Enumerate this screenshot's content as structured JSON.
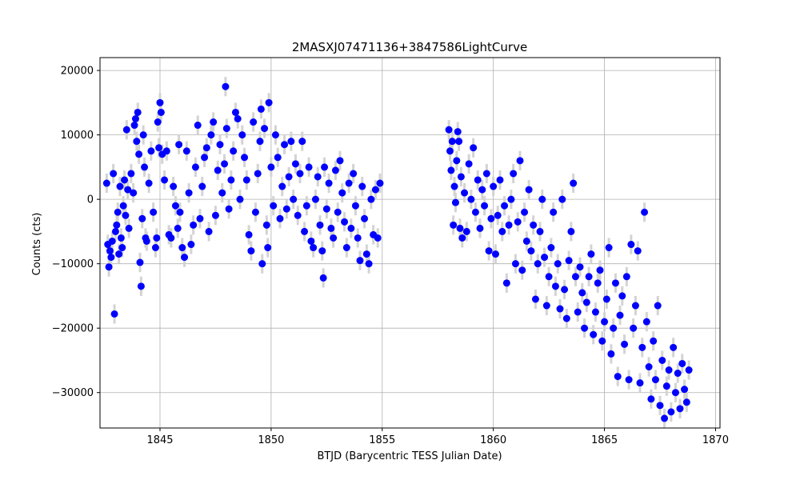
{
  "chart_data": {
    "type": "scatter",
    "title": "2MASXJ07471136+3847586LightCurve",
    "xlabel": "BTJD (Barycentric TESS Julian Date)",
    "ylabel": "Counts (cts)",
    "xlim": [
      1842.3,
      1870.2
    ],
    "ylim": [
      -35500,
      22000
    ],
    "xticks": [
      1845,
      1850,
      1855,
      1860,
      1865,
      1870
    ],
    "yticks": [
      -30000,
      -20000,
      -10000,
      0,
      10000,
      20000
    ],
    "xtick_labels": [
      "1845",
      "1850",
      "1855",
      "1860",
      "1865",
      "1870"
    ],
    "ytick_labels": [
      "−30000",
      "−20000",
      "−10000",
      "0",
      "10000",
      "20000"
    ],
    "grid": true,
    "legend": "none",
    "marker_color": "#0000ff",
    "errorbar_color": "#d3d3d3",
    "series": [
      {
        "error": 1500,
        "points": [
          [
            1842.6,
            2500
          ],
          [
            1842.65,
            -7000
          ],
          [
            1842.7,
            -10500
          ],
          [
            1842.75,
            -8000
          ],
          [
            1842.8,
            -9000
          ],
          [
            1842.85,
            -6500
          ],
          [
            1842.9,
            4000
          ],
          [
            1842.95,
            -17800
          ],
          [
            1843.0,
            -5000
          ],
          [
            1843.05,
            -4000
          ],
          [
            1843.1,
            -2000
          ],
          [
            1843.15,
            -8500
          ],
          [
            1843.2,
            2000
          ],
          [
            1843.25,
            -6000
          ],
          [
            1843.3,
            -7500
          ],
          [
            1843.35,
            -1000
          ],
          [
            1843.4,
            3000
          ],
          [
            1843.45,
            -2500
          ],
          [
            1843.5,
            10800
          ],
          [
            1843.55,
            1500
          ],
          [
            1843.6,
            -4500
          ],
          [
            1843.7,
            4000
          ],
          [
            1843.8,
            1000
          ],
          [
            1843.85,
            11500
          ],
          [
            1843.9,
            12500
          ],
          [
            1843.95,
            9000
          ],
          [
            1844.0,
            13500
          ],
          [
            1844.05,
            7000
          ],
          [
            1844.1,
            -9800
          ],
          [
            1844.15,
            -13500
          ],
          [
            1844.2,
            -3000
          ],
          [
            1844.25,
            10000
          ],
          [
            1844.3,
            5000
          ],
          [
            1844.35,
            -6000
          ],
          [
            1844.4,
            -6500
          ],
          [
            1844.5,
            2500
          ],
          [
            1844.6,
            7500
          ],
          [
            1844.7,
            -2000
          ],
          [
            1844.8,
            -7500
          ],
          [
            1844.85,
            -6000
          ],
          [
            1844.9,
            12000
          ],
          [
            1844.95,
            8000
          ],
          [
            1845.0,
            15000
          ],
          [
            1845.05,
            13500
          ],
          [
            1845.1,
            7000
          ],
          [
            1845.2,
            3000
          ],
          [
            1845.3,
            7500
          ],
          [
            1845.4,
            -5500
          ],
          [
            1845.5,
            -6000
          ],
          [
            1845.6,
            2000
          ],
          [
            1845.7,
            -1000
          ],
          [
            1845.8,
            -4500
          ],
          [
            1845.85,
            8500
          ],
          [
            1845.9,
            -2000
          ],
          [
            1846.0,
            -7500
          ],
          [
            1846.1,
            -9000
          ],
          [
            1846.2,
            7500
          ],
          [
            1846.3,
            1000
          ],
          [
            1846.4,
            -7000
          ],
          [
            1846.5,
            -4000
          ],
          [
            1846.6,
            5000
          ],
          [
            1846.7,
            11500
          ],
          [
            1846.8,
            -3000
          ],
          [
            1846.9,
            2000
          ],
          [
            1847.0,
            6500
          ],
          [
            1847.1,
            8000
          ],
          [
            1847.2,
            -5000
          ],
          [
            1847.3,
            10000
          ],
          [
            1847.4,
            12000
          ],
          [
            1847.5,
            -2500
          ],
          [
            1847.6,
            4500
          ],
          [
            1847.7,
            8500
          ],
          [
            1847.8,
            1000
          ],
          [
            1847.9,
            5500
          ],
          [
            1847.95,
            17500
          ],
          [
            1848.0,
            11000
          ],
          [
            1848.1,
            -1500
          ],
          [
            1848.2,
            3000
          ],
          [
            1848.3,
            7500
          ],
          [
            1848.4,
            13500
          ],
          [
            1848.5,
            12500
          ],
          [
            1848.6,
            0
          ],
          [
            1848.7,
            10000
          ],
          [
            1848.8,
            6500
          ],
          [
            1848.9,
            3000
          ],
          [
            1849.0,
            -5500
          ],
          [
            1849.1,
            -8000
          ],
          [
            1849.2,
            12000
          ],
          [
            1849.3,
            -2000
          ],
          [
            1849.4,
            4000
          ],
          [
            1849.5,
            9000
          ],
          [
            1849.55,
            14000
          ],
          [
            1849.6,
            -10000
          ],
          [
            1849.7,
            11000
          ],
          [
            1849.8,
            -4000
          ],
          [
            1849.85,
            -7500
          ],
          [
            1849.9,
            15000
          ],
          [
            1850.0,
            5000
          ],
          [
            1850.1,
            -1000
          ],
          [
            1850.2,
            10000
          ],
          [
            1850.3,
            6500
          ],
          [
            1850.4,
            -3000
          ],
          [
            1850.5,
            2000
          ],
          [
            1850.6,
            8500
          ],
          [
            1850.7,
            -1500
          ],
          [
            1850.8,
            3500
          ],
          [
            1850.9,
            9000
          ],
          [
            1851.0,
            0
          ],
          [
            1851.1,
            5500
          ],
          [
            1851.2,
            -2500
          ],
          [
            1851.3,
            4000
          ],
          [
            1851.4,
            9000
          ],
          [
            1851.5,
            -5000
          ],
          [
            1851.6,
            -1000
          ],
          [
            1851.7,
            5000
          ],
          [
            1851.8,
            -6500
          ],
          [
            1851.9,
            -7500
          ],
          [
            1852.0,
            0
          ],
          [
            1852.1,
            3500
          ],
          [
            1852.2,
            -4000
          ],
          [
            1852.3,
            -8000
          ],
          [
            1852.35,
            -12200
          ],
          [
            1852.4,
            5000
          ],
          [
            1852.5,
            -1500
          ],
          [
            1852.6,
            2500
          ],
          [
            1852.7,
            -4500
          ],
          [
            1852.8,
            -6000
          ],
          [
            1852.9,
            4500
          ],
          [
            1853.0,
            -2000
          ],
          [
            1853.1,
            6000
          ],
          [
            1853.2,
            1000
          ],
          [
            1853.3,
            -3500
          ],
          [
            1853.4,
            -7500
          ],
          [
            1853.5,
            2500
          ],
          [
            1853.6,
            -4500
          ],
          [
            1853.7,
            4000
          ],
          [
            1853.8,
            -1000
          ],
          [
            1853.9,
            -6000
          ],
          [
            1854.0,
            -9500
          ],
          [
            1854.1,
            2000
          ],
          [
            1854.2,
            -3000
          ],
          [
            1854.3,
            -8500
          ],
          [
            1854.4,
            -10000
          ],
          [
            1854.5,
            0
          ],
          [
            1854.6,
            -5500
          ],
          [
            1854.7,
            1500
          ],
          [
            1854.8,
            -6000
          ],
          [
            1854.9,
            2500
          ],
          [
            1858.0,
            10800
          ],
          [
            1858.05,
            7500
          ],
          [
            1858.1,
            4500
          ],
          [
            1858.15,
            9000
          ],
          [
            1858.2,
            -4000
          ],
          [
            1858.25,
            2000
          ],
          [
            1858.3,
            -500
          ],
          [
            1858.35,
            6000
          ],
          [
            1858.4,
            10500
          ],
          [
            1858.45,
            9000
          ],
          [
            1858.5,
            -4500
          ],
          [
            1858.55,
            3500
          ],
          [
            1858.6,
            -6000
          ],
          [
            1858.7,
            1000
          ],
          [
            1858.8,
            -5000
          ],
          [
            1858.9,
            5500
          ],
          [
            1859.0,
            0
          ],
          [
            1859.1,
            8000
          ],
          [
            1859.2,
            -2000
          ],
          [
            1859.3,
            3000
          ],
          [
            1859.4,
            -4500
          ],
          [
            1859.5,
            1500
          ],
          [
            1859.6,
            -1000
          ],
          [
            1859.7,
            4000
          ],
          [
            1859.8,
            -8000
          ],
          [
            1859.9,
            -3000
          ],
          [
            1860.0,
            2000
          ],
          [
            1860.1,
            -8500
          ],
          [
            1860.2,
            -2500
          ],
          [
            1860.3,
            3000
          ],
          [
            1860.4,
            -5000
          ],
          [
            1860.5,
            -1000
          ],
          [
            1860.6,
            -13000
          ],
          [
            1860.7,
            -4000
          ],
          [
            1860.8,
            0
          ],
          [
            1860.9,
            4000
          ],
          [
            1861.0,
            -10000
          ],
          [
            1861.1,
            -3500
          ],
          [
            1861.2,
            6000
          ],
          [
            1861.3,
            -11000
          ],
          [
            1861.4,
            -2000
          ],
          [
            1861.5,
            -6500
          ],
          [
            1861.6,
            1500
          ],
          [
            1861.7,
            -8000
          ],
          [
            1861.8,
            -4000
          ],
          [
            1861.9,
            -15500
          ],
          [
            1862.0,
            -10000
          ],
          [
            1862.1,
            -5000
          ],
          [
            1862.2,
            0
          ],
          [
            1862.3,
            -9000
          ],
          [
            1862.4,
            -16500
          ],
          [
            1862.5,
            -12000
          ],
          [
            1862.6,
            -7500
          ],
          [
            1862.7,
            -2000
          ],
          [
            1862.8,
            -13500
          ],
          [
            1862.9,
            -10000
          ],
          [
            1863.0,
            -17000
          ],
          [
            1863.1,
            0
          ],
          [
            1863.2,
            -14000
          ],
          [
            1863.3,
            -18500
          ],
          [
            1863.4,
            -9500
          ],
          [
            1863.5,
            -5000
          ],
          [
            1863.6,
            2500
          ],
          [
            1863.7,
            -12000
          ],
          [
            1863.8,
            -17500
          ],
          [
            1863.9,
            -10500
          ],
          [
            1864.0,
            -14500
          ],
          [
            1864.1,
            -20000
          ],
          [
            1864.2,
            -16000
          ],
          [
            1864.3,
            -12000
          ],
          [
            1864.4,
            -8500
          ],
          [
            1864.5,
            -21000
          ],
          [
            1864.6,
            -17500
          ],
          [
            1864.7,
            -13000
          ],
          [
            1864.8,
            -11000
          ],
          [
            1864.9,
            -22000
          ],
          [
            1865.0,
            -19000
          ],
          [
            1865.1,
            -15500
          ],
          [
            1865.2,
            -7500
          ],
          [
            1865.3,
            -24000
          ],
          [
            1865.4,
            -20000
          ],
          [
            1865.5,
            -13000
          ],
          [
            1865.6,
            -27500
          ],
          [
            1865.7,
            -18000
          ],
          [
            1865.8,
            -15000
          ],
          [
            1865.9,
            -22500
          ],
          [
            1866.0,
            -12000
          ],
          [
            1866.1,
            -28000
          ],
          [
            1866.2,
            -7000
          ],
          [
            1866.3,
            -20000
          ],
          [
            1866.4,
            -16500
          ],
          [
            1866.5,
            -8000
          ],
          [
            1866.6,
            -28500
          ],
          [
            1866.7,
            -23000
          ],
          [
            1866.8,
            -2000
          ],
          [
            1866.9,
            -19000
          ],
          [
            1867.0,
            -26000
          ],
          [
            1867.1,
            -31000
          ],
          [
            1867.2,
            -22000
          ],
          [
            1867.3,
            -28000
          ],
          [
            1867.4,
            -16500
          ],
          [
            1867.5,
            -32000
          ],
          [
            1867.6,
            -25000
          ],
          [
            1867.7,
            -34000
          ],
          [
            1867.8,
            -29000
          ],
          [
            1867.9,
            -26500
          ],
          [
            1868.0,
            -33000
          ],
          [
            1868.1,
            -23000
          ],
          [
            1868.2,
            -30000
          ],
          [
            1868.3,
            -27000
          ],
          [
            1868.4,
            -32500
          ],
          [
            1868.5,
            -25500
          ],
          [
            1868.6,
            -29500
          ],
          [
            1868.7,
            -31500
          ],
          [
            1868.8,
            -26500
          ]
        ]
      }
    ]
  }
}
